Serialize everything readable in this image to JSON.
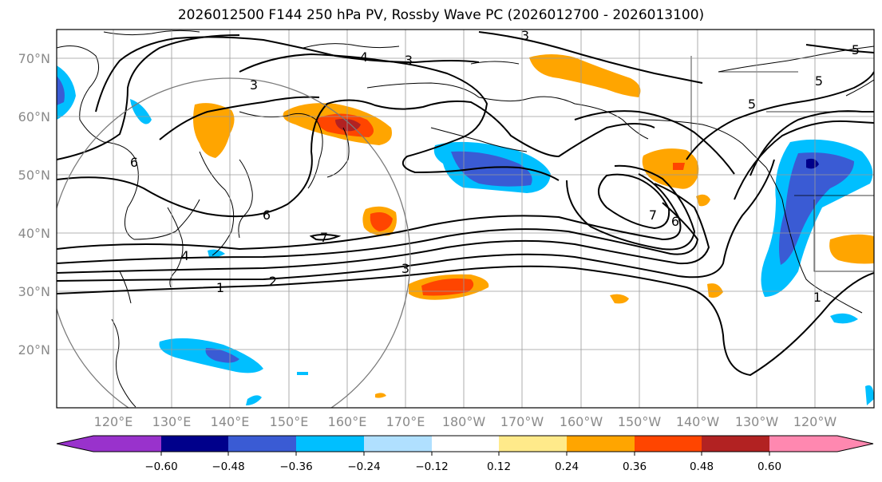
{
  "title": "2026012500 F144 250 hPa PV, Rossby Wave PC (2026012700 - 2026013100)",
  "map": {
    "lat_labels": [
      "70°N",
      "60°N",
      "50°N",
      "40°N",
      "30°N",
      "20°N"
    ],
    "lon_labels": [
      "120°E",
      "130°E",
      "140°E",
      "150°E",
      "160°E",
      "170°E",
      "180°W",
      "170°W",
      "160°W",
      "150°W",
      "140°W",
      "130°W",
      "120°W"
    ],
    "contour_labels": [
      "3",
      "4",
      "3",
      "3",
      "5",
      "5",
      "6",
      "6",
      "7",
      "7",
      "6",
      "4",
      "2",
      "1",
      "3",
      "1",
      "5"
    ]
  },
  "colorbar": {
    "ticks": [
      "−0.60",
      "−0.48",
      "−0.36",
      "−0.24",
      "−0.12",
      "0.12",
      "0.24",
      "0.36",
      "0.48",
      "0.60"
    ],
    "colors": [
      "#9932cc",
      "#00008b",
      "#3a5bd4",
      "#00bfff",
      "#b0e0ff",
      "#ffffff",
      "#ffea8a",
      "#ffa500",
      "#ff4500",
      "#b22222",
      "#ff88b0"
    ]
  }
}
